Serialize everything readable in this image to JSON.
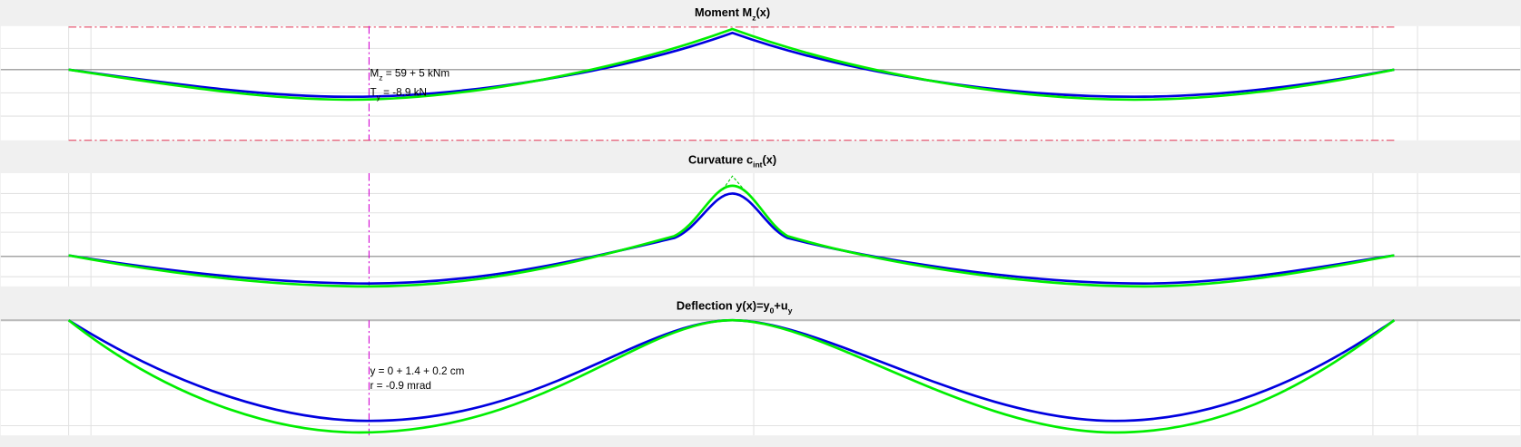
{
  "panels": [
    {
      "title": {
        "main": "Moment M",
        "sub": "z",
        "end": "(x)"
      },
      "annotations": [
        {
          "main": "M",
          "sub": "z",
          "end": " = 59 + 5 kNm"
        },
        {
          "main": "T",
          "sub": "y",
          "end": " = -8.9 kN"
        }
      ]
    },
    {
      "title": {
        "main": "Curvature c",
        "sub": "int",
        "end": "(x)"
      }
    },
    {
      "title": {
        "main": "Deflection y(x)=y",
        "sub": "0",
        "end": "+u",
        "sub2": "y"
      },
      "annotations": [
        {
          "main": "y = 0 + 1.4 + 0.2 cm"
        },
        {
          "main": "r = -0.9 mrad"
        }
      ]
    }
  ]
}
